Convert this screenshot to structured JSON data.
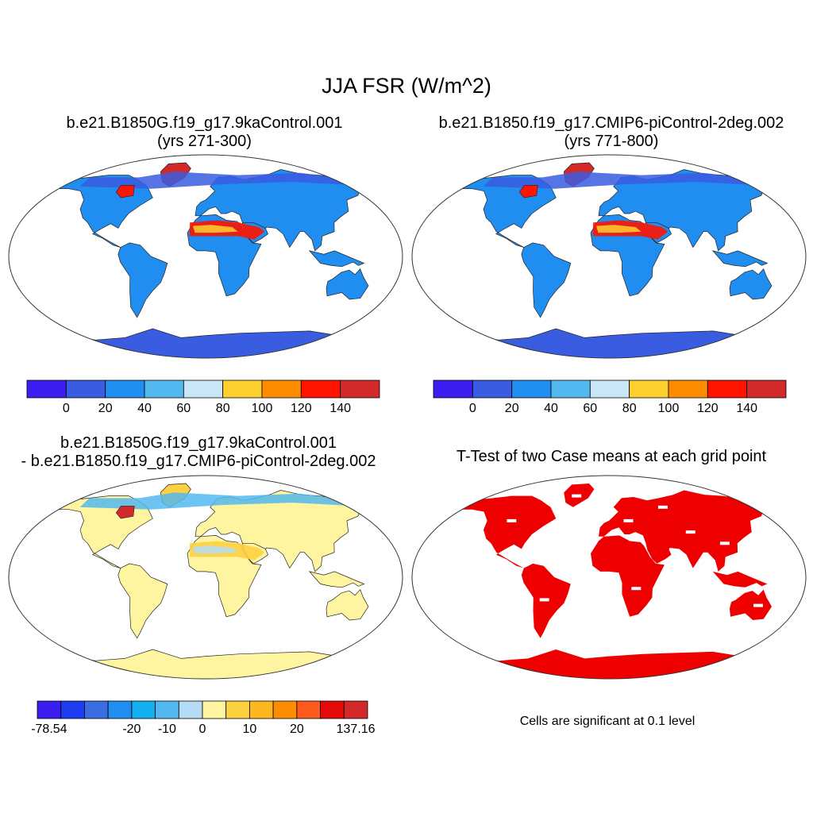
{
  "figure": {
    "title": "JJA FSR (W/m^2)"
  },
  "panels": [
    {
      "title_line1": "b.e21.B1850G.f19_g17.9kaControl.001",
      "title_line2": "(yrs 271-300)",
      "type": "map",
      "colorbar": {
        "colors": [
          "#3d1ef0",
          "#3a5ce0",
          "#1f8ef0",
          "#53b8ef",
          "#c9e6f6",
          "#fdd030",
          "#fd8c00",
          "#fe1400",
          "#d22a2a"
        ],
        "tick_labels": [
          "0",
          "20",
          "40",
          "60",
          "80",
          "100",
          "120",
          "140"
        ]
      }
    },
    {
      "title_line1": "b.e21.B1850.f19_g17.CMIP6-piControl-2deg.002",
      "title_line2": "(yrs 771-800)",
      "type": "map",
      "colorbar": {
        "colors": [
          "#3d1ef0",
          "#3a5ce0",
          "#1f8ef0",
          "#53b8ef",
          "#c9e6f6",
          "#fdd030",
          "#fd8c00",
          "#fe1400",
          "#d22a2a"
        ],
        "tick_labels": [
          "0",
          "20",
          "40",
          "60",
          "80",
          "100",
          "120",
          "140"
        ]
      }
    },
    {
      "title_line1": "b.e21.B1850G.f19_g17.9kaControl.001",
      "title_line2": "- b.e21.B1850.f19_g17.CMIP6-piControl-2deg.002",
      "type": "map",
      "colorbar": {
        "colors": [
          "#3c1ef0",
          "#1e3cf0",
          "#3a6ee0",
          "#1f8ef0",
          "#12b0f0",
          "#53b8ef",
          "#b5dcf4",
          "#fff5a0",
          "#fdd040",
          "#fdb820",
          "#fd8c00",
          "#fe5a1e",
          "#e40a0a",
          "#d22a2a"
        ],
        "tick_labels": [
          "-78.54",
          "-20",
          "-10",
          "0",
          "10",
          "20",
          "137.16"
        ]
      }
    },
    {
      "title_line1": "T-Test of two Case means at each grid point",
      "type": "map",
      "significance_color": "#ee0000",
      "note": "Cells are significant at 0.1 level"
    }
  ]
}
